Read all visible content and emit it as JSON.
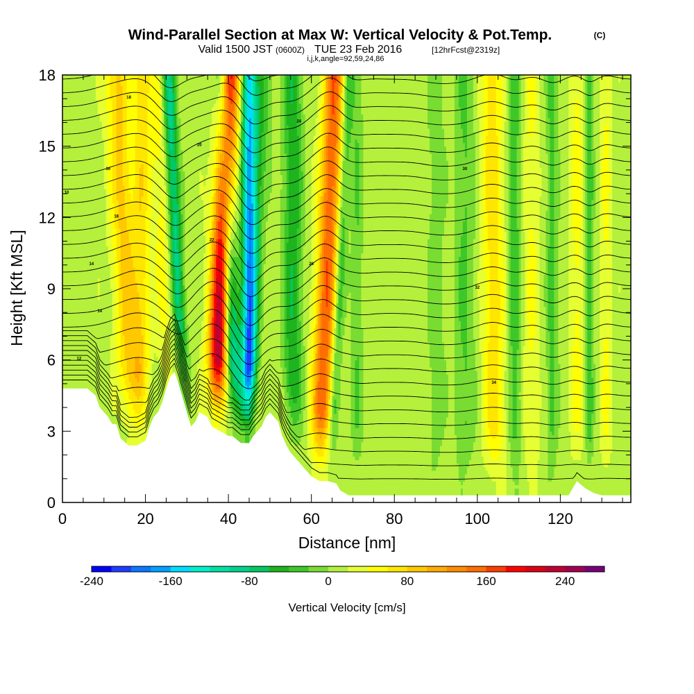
{
  "header": {
    "title": "Wind-Parallel Section at Max W: Vertical Velocity & Pot.Temp.",
    "title_mark": "(C)",
    "valid_prefix": "Valid 1500 JST",
    "valid_z": "(0600Z)",
    "valid_date": "TUE 23 Feb 2016",
    "forecast": "[12hrFcst@2319z]",
    "indices": "i,j,k,angle=92,59,24,86"
  },
  "chart_data": {
    "type": "heatmap",
    "xlabel": "Distance [nm]",
    "ylabel": "Height [Kft MSL]",
    "xlim": [
      0,
      137
    ],
    "ylim": [
      0,
      18
    ],
    "xticks": [
      0,
      20,
      40,
      60,
      80,
      100,
      120
    ],
    "yticks": [
      0,
      3,
      6,
      9,
      12,
      15,
      18
    ],
    "colorbar": {
      "label": "Vertical Velocity [cm/s]",
      "min": -240,
      "max": 280,
      "step": 20,
      "tick_values": [
        -240,
        -160,
        -80,
        0,
        80,
        160,
        240
      ],
      "colors": [
        "#0000ff",
        "#1e3cff",
        "#0a78ff",
        "#00a0ff",
        "#00dcff",
        "#00f0c8",
        "#00e0a0",
        "#00d28c",
        "#00c864",
        "#1eb41e",
        "#3cc828",
        "#78dc32",
        "#b4f03c",
        "#e6ff32",
        "#ffff00",
        "#ffe600",
        "#ffc800",
        "#ffaa00",
        "#ff8c00",
        "#ff6e00",
        "#ff3c00",
        "#ff0000",
        "#dc0014",
        "#be0032",
        "#a00050",
        "#780078"
      ]
    },
    "terrain_kft": [
      [
        0,
        4.8
      ],
      [
        6,
        4.8
      ],
      [
        8,
        4.5
      ],
      [
        9,
        4.0
      ],
      [
        10,
        3.8
      ],
      [
        11,
        3.6
      ],
      [
        12,
        3.3
      ],
      [
        13,
        3.3
      ],
      [
        14,
        2.7
      ],
      [
        16,
        2.4
      ],
      [
        18,
        2.4
      ],
      [
        20,
        2.6
      ],
      [
        21,
        3.2
      ],
      [
        22,
        3.6
      ],
      [
        23,
        3.8
      ],
      [
        24,
        4.2
      ],
      [
        25,
        4.8
      ],
      [
        26,
        5.3
      ],
      [
        27,
        5.5
      ],
      [
        28,
        5.0
      ],
      [
        29,
        4.4
      ],
      [
        30,
        3.8
      ],
      [
        31,
        3.2
      ],
      [
        32,
        3.4
      ],
      [
        33,
        3.8
      ],
      [
        35,
        3.6
      ],
      [
        36,
        3.2
      ],
      [
        38,
        3.0
      ],
      [
        40,
        2.8
      ],
      [
        41,
        2.8
      ],
      [
        43,
        2.5
      ],
      [
        45,
        2.5
      ],
      [
        46,
        2.8
      ],
      [
        48,
        3.2
      ],
      [
        49,
        3.6
      ],
      [
        50,
        3.8
      ],
      [
        52,
        3.4
      ],
      [
        53,
        2.8
      ],
      [
        54,
        2.4
      ],
      [
        55,
        2.1
      ],
      [
        56,
        1.9
      ],
      [
        57,
        1.7
      ],
      [
        58,
        1.5
      ],
      [
        59,
        1.3
      ],
      [
        60,
        1.1
      ],
      [
        61,
        1.0
      ],
      [
        62,
        0.9
      ],
      [
        64,
        0.9
      ],
      [
        66,
        0.8
      ],
      [
        67,
        0.5
      ],
      [
        69,
        0.3
      ],
      [
        76,
        0.3
      ],
      [
        96,
        0.3
      ],
      [
        110,
        0.3
      ],
      [
        122,
        0.3
      ],
      [
        124,
        0.9
      ],
      [
        126,
        0.6
      ],
      [
        128,
        0.4
      ],
      [
        130,
        0.3
      ],
      [
        137,
        0.3
      ]
    ],
    "w_features": [
      {
        "x_base": 16,
        "lean": 0.24,
        "width": 2.8,
        "amp": 75
      },
      {
        "x_base": 19,
        "lean": 0.0,
        "width": 2.0,
        "amp": 55
      },
      {
        "x_base": 26,
        "lean": 0.3,
        "width": 3.0,
        "amp": 35
      },
      {
        "x_base": 28.5,
        "lean": 0.25,
        "width": 1.6,
        "amp": -110
      },
      {
        "x_base": 37.5,
        "lean": -0.22,
        "width": 2.4,
        "amp": 230
      },
      {
        "x_base": 41,
        "lean": 0.2,
        "width": 2.0,
        "amp": -120
      },
      {
        "x_base": 45,
        "lean": 0.0,
        "width": 1.7,
        "amp": -170
      },
      {
        "x_base": 45,
        "lean": -0.3,
        "width": 2.0,
        "amp": -50
      },
      {
        "x_base": 63,
        "lean": -0.22,
        "width": 2.5,
        "amp": 145
      },
      {
        "x_base": 66,
        "lean": -0.25,
        "width": 1.3,
        "amp": -60
      },
      {
        "x_base": 55.5,
        "lean": 0.0,
        "width": 2.2,
        "amp": -70
      },
      {
        "x_base": 71,
        "lean": 0.0,
        "width": 1.5,
        "amp": -30
      },
      {
        "x_base": 90,
        "lean": 0.0,
        "width": 2.0,
        "amp": -25
      },
      {
        "x_base": 97,
        "lean": 0.0,
        "width": 2.5,
        "amp": -35
      },
      {
        "x_base": 104,
        "lean": 0.05,
        "width": 2.6,
        "amp": 60
      },
      {
        "x_base": 109,
        "lean": 0.0,
        "width": 1.6,
        "amp": -45
      },
      {
        "x_base": 113,
        "lean": 0.0,
        "width": 2.0,
        "amp": 30
      },
      {
        "x_base": 118,
        "lean": 0.0,
        "width": 1.4,
        "amp": -40
      },
      {
        "x_base": 124,
        "lean": 0.0,
        "width": 1.5,
        "amp": 35
      },
      {
        "x_base": 127,
        "lean": 0.0,
        "width": 1.0,
        "amp": -45
      },
      {
        "x_base": 131,
        "lean": 0.0,
        "width": 1.4,
        "amp": 30
      }
    ],
    "theta_contours": {
      "count": 32,
      "base_kft": 1.0,
      "spacing_kft": 0.58,
      "label_values": [
        "10",
        "12",
        "14",
        "14",
        "16",
        "18",
        "18",
        "20",
        "22",
        "24",
        "26",
        "28",
        "30",
        "32",
        "34"
      ]
    }
  }
}
